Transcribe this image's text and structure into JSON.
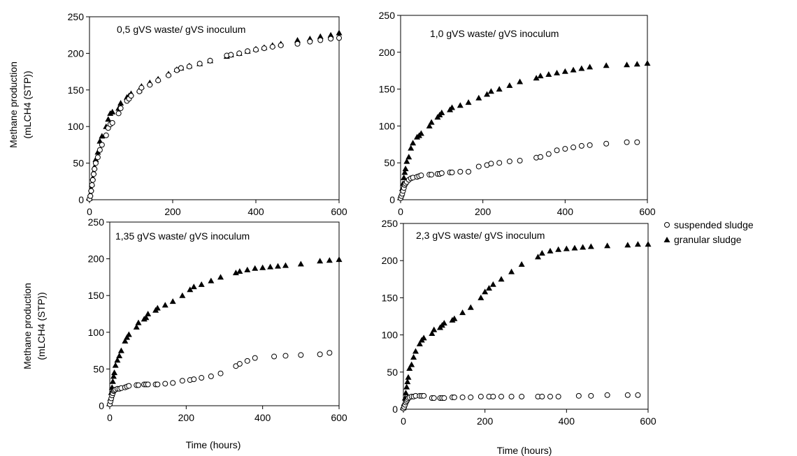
{
  "chart_data": {
    "type": "scatter",
    "legend": {
      "placement": "right",
      "entries": [
        {
          "key": "suspended",
          "label": "suspended sludge",
          "marker": "open-circle"
        },
        {
          "key": "granular",
          "label": "granular sludge",
          "marker": "filled-triangle"
        }
      ]
    },
    "xlabel": "Time (hours)",
    "ylabel_line1": "Methane production",
    "ylabel_line2": "(mLCH4 (STP))",
    "xlim": [
      0,
      600
    ],
    "ylim": [
      0,
      250
    ],
    "x_ticks": [
      0,
      200,
      400,
      600
    ],
    "y_ticks": [
      0,
      50,
      100,
      150,
      200,
      250
    ],
    "marker_color": "#000000",
    "panels": [
      {
        "title": "0,5 gVS waste/ gVS inoculum",
        "series": [
          {
            "key": "granular",
            "x": [
              0,
              2,
              4,
              6,
              8,
              10,
              12,
              15,
              20,
              25,
              30,
              40,
              45,
              50,
              55,
              70,
              75,
              90,
              95,
              100,
              120,
              125,
              145,
              165,
              190,
              210,
              220,
              240,
              265,
              290,
              330,
              340,
              360,
              380,
              400,
              420,
              440,
              460,
              500,
              530,
              555,
              580,
              600
            ],
            "y": [
              2,
              8,
              15,
              22,
              30,
              38,
              45,
              55,
              65,
              80,
              87,
              100,
              110,
              118,
              120,
              125,
              132,
              140,
              142,
              145,
              150,
              155,
              160,
              165,
              172,
              178,
              180,
              183,
              186,
              190,
              196,
              198,
              200,
              203,
              206,
              208,
              211,
              213,
              218,
              220,
              223,
              225,
              228
            ]
          },
          {
            "key": "suspended",
            "x": [
              0,
              2,
              4,
              6,
              8,
              10,
              12,
              15,
              20,
              25,
              30,
              40,
              45,
              50,
              55,
              70,
              75,
              90,
              95,
              100,
              120,
              125,
              145,
              165,
              190,
              210,
              220,
              240,
              265,
              290,
              330,
              340,
              360,
              380,
              400,
              420,
              440,
              460,
              500,
              530,
              555,
              580,
              600
            ],
            "y": [
              1,
              5,
              12,
              20,
              27,
              35,
              42,
              50,
              58,
              68,
              75,
              88,
              98,
              103,
              105,
              118,
              125,
              135,
              138,
              142,
              148,
              153,
              157,
              163,
              170,
              177,
              180,
              182,
              186,
              190,
              197,
              198,
              200,
              203,
              205,
              207,
              209,
              211,
              213,
              216,
              218,
              220,
              221
            ]
          }
        ]
      },
      {
        "title": "1,0 gVS waste/ gVS inoculum",
        "series": [
          {
            "key": "granular",
            "x": [
              0,
              2,
              4,
              6,
              8,
              10,
              12,
              15,
              20,
              25,
              30,
              40,
              45,
              50,
              70,
              75,
              90,
              95,
              100,
              120,
              125,
              145,
              165,
              190,
              210,
              220,
              240,
              265,
              290,
              330,
              340,
              360,
              380,
              400,
              420,
              440,
              460,
              500,
              550,
              575,
              600
            ],
            "y": [
              3,
              8,
              15,
              22,
              30,
              37,
              42,
              52,
              58,
              70,
              77,
              85,
              87,
              90,
              100,
              105,
              112,
              115,
              118,
              122,
              125,
              128,
              132,
              138,
              143,
              147,
              150,
              155,
              160,
              165,
              168,
              170,
              172,
              174,
              176,
              178,
              180,
              182,
              183,
              184,
              185
            ]
          },
          {
            "key": "suspended",
            "x": [
              0,
              2,
              4,
              6,
              8,
              10,
              12,
              15,
              20,
              25,
              30,
              40,
              45,
              50,
              70,
              75,
              90,
              95,
              100,
              120,
              125,
              145,
              165,
              190,
              210,
              220,
              240,
              265,
              290,
              330,
              340,
              360,
              380,
              400,
              420,
              440,
              460,
              500,
              550,
              575
            ],
            "y": [
              2,
              5,
              8,
              12,
              16,
              20,
              22,
              24,
              27,
              29,
              30,
              31,
              32,
              33,
              34,
              34,
              35,
              35,
              36,
              37,
              37,
              38,
              38,
              45,
              47,
              49,
              50,
              52,
              53,
              57,
              58,
              62,
              67,
              69,
              71,
              73,
              74,
              76,
              78,
              78
            ]
          }
        ]
      },
      {
        "title": "1,35 gVS waste/ gVS inoculum",
        "series": [
          {
            "key": "granular",
            "x": [
              0,
              2,
              4,
              6,
              8,
              10,
              12,
              15,
              20,
              25,
              30,
              40,
              45,
              50,
              70,
              75,
              90,
              95,
              100,
              120,
              125,
              145,
              165,
              190,
              210,
              220,
              240,
              265,
              290,
              330,
              340,
              360,
              380,
              400,
              420,
              440,
              460,
              500,
              550,
              575,
              600
            ],
            "y": [
              3,
              10,
              18,
              25,
              33,
              40,
              45,
              55,
              62,
              68,
              75,
              88,
              93,
              97,
              107,
              113,
              118,
              120,
              125,
              130,
              133,
              137,
              142,
              150,
              158,
              162,
              165,
              170,
              175,
              181,
              183,
              185,
              187,
              188,
              189,
              190,
              191,
              193,
              197,
              198,
              199
            ]
          },
          {
            "key": "suspended",
            "x": [
              0,
              2,
              4,
              6,
              8,
              10,
              12,
              15,
              20,
              25,
              30,
              40,
              45,
              50,
              70,
              75,
              90,
              95,
              100,
              120,
              125,
              145,
              165,
              190,
              210,
              220,
              240,
              265,
              290,
              330,
              340,
              360,
              380,
              430,
              460,
              500,
              550,
              575
            ],
            "y": [
              2,
              6,
              10,
              14,
              17,
              20,
              21,
              22,
              23,
              23,
              24,
              25,
              26,
              27,
              28,
              28,
              29,
              29,
              29,
              29,
              29,
              30,
              31,
              34,
              35,
              36,
              38,
              40,
              44,
              54,
              57,
              61,
              65,
              67,
              68,
              69,
              70,
              72
            ]
          }
        ]
      },
      {
        "title": "2,3 gVS waste/ gVS inoculum",
        "series": [
          {
            "key": "granular",
            "x": [
              0,
              2,
              4,
              6,
              8,
              10,
              12,
              15,
              20,
              25,
              30,
              40,
              45,
              50,
              70,
              75,
              90,
              95,
              100,
              120,
              125,
              145,
              165,
              190,
              200,
              210,
              220,
              240,
              265,
              290,
              330,
              340,
              360,
              380,
              400,
              420,
              440,
              460,
              500,
              550,
              575,
              600
            ],
            "y": [
              2,
              8,
              15,
              22,
              30,
              37,
              43,
              55,
              60,
              70,
              78,
              88,
              93,
              96,
              102,
              107,
              110,
              113,
              116,
              120,
              122,
              130,
              137,
              150,
              158,
              163,
              168,
              175,
              185,
              195,
              205,
              210,
              213,
              215,
              216,
              217,
              218,
              219,
              220,
              221,
              222,
              222
            ]
          },
          {
            "key": "suspended",
            "x": [
              0,
              2,
              4,
              6,
              8,
              10,
              12,
              15,
              20,
              25,
              30,
              40,
              45,
              50,
              70,
              75,
              90,
              95,
              100,
              120,
              125,
              145,
              165,
              190,
              210,
              220,
              240,
              265,
              290,
              330,
              340,
              360,
              380,
              430,
              460,
              500,
              550,
              575
            ],
            "y": [
              1,
              3,
              6,
              9,
              11,
              13,
              15,
              16,
              17,
              17,
              18,
              18,
              18,
              18,
              15,
              15,
              15,
              15,
              15,
              16,
              16,
              16,
              16,
              17,
              17,
              17,
              17,
              17,
              17,
              17,
              17,
              17,
              17,
              18,
              18,
              19,
              19,
              19
            ]
          }
        ]
      }
    ]
  }
}
